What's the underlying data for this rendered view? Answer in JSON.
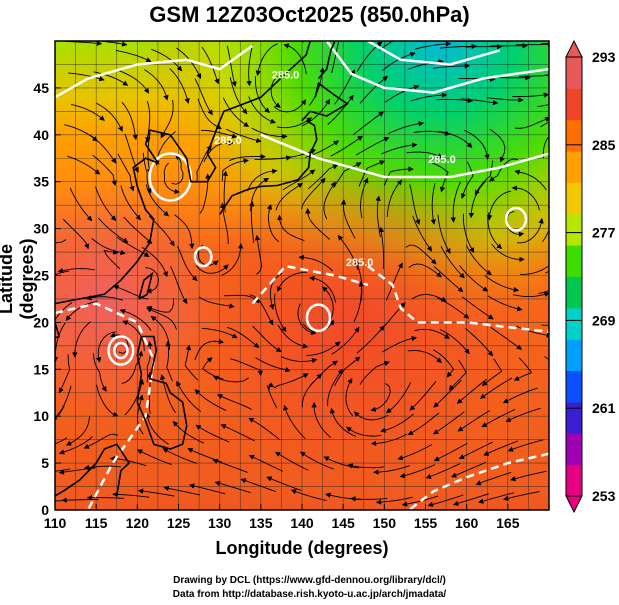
{
  "title": "GSM 12Z03Oct2025 (850.0hPa)",
  "x_axis": {
    "label": "Longitude (degrees)",
    "range": [
      110,
      170
    ],
    "ticks": [
      110,
      115,
      120,
      125,
      130,
      135,
      140,
      145,
      150,
      155,
      160,
      165
    ]
  },
  "y_axis": {
    "label": "Latitude  (degrees)",
    "range": [
      0,
      50
    ],
    "ticks": [
      0,
      5,
      10,
      15,
      20,
      25,
      30,
      35,
      40,
      45
    ]
  },
  "colorbar": {
    "ticks": [
      293,
      285,
      277,
      269,
      261,
      253
    ],
    "range": [
      253,
      293
    ],
    "colors": [
      "#e7007f",
      "#a000b4",
      "#3c1ed2",
      "#0a50ff",
      "#00a0ff",
      "#00d2c8",
      "#00c850",
      "#3cdc00",
      "#b4e600",
      "#f0c800",
      "#ffa000",
      "#ff6e00",
      "#f04628",
      "#e65a5a"
    ]
  },
  "contour_labels": [
    "285.0",
    "285.0",
    "285.0",
    "285.0"
  ],
  "credits": {
    "line1": "Drawing by DCL (https://www.gfd-dennou.org/library/dcl/)",
    "line2": "Data from http://database.rish.kyoto-u.ac.jp/arch/jmadata/"
  }
}
